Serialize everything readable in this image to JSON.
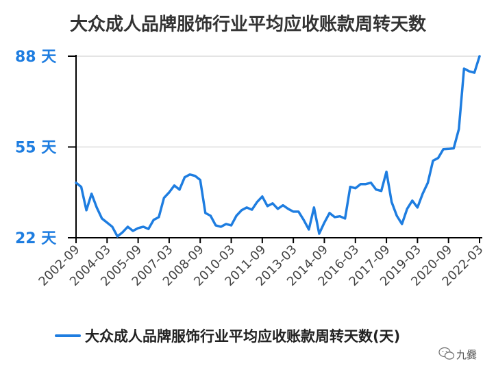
{
  "chart_data": {
    "type": "line",
    "title": "大众成人品牌服饰行业平均应收账款周转天数",
    "ylim": [
      22,
      88
    ],
    "yticks": [
      {
        "value": 22,
        "label": "22 天"
      },
      {
        "value": 55,
        "label": "55 天"
      },
      {
        "value": 88,
        "label": "88 天"
      }
    ],
    "xtick_labels": [
      "2002-09",
      "2004-03",
      "2005-09",
      "2007-03",
      "2008-09",
      "2010-03",
      "2011-09",
      "2013-03",
      "2014-09",
      "2016-03",
      "2017-09",
      "2019-03",
      "2020-09",
      "2022-03"
    ],
    "grid": true,
    "legend": "bottom",
    "series": [
      {
        "name": "大众成人品牌服饰行业平均应收账款周转天数(天)",
        "values": [
          42,
          40.5,
          32,
          38,
          33,
          29,
          27.5,
          26,
          22.5,
          24,
          26,
          24.5,
          25.5,
          26,
          25.2,
          28.5,
          29.5,
          36.5,
          38.5,
          41,
          39.5,
          44,
          45,
          44.5,
          43,
          31,
          30,
          26.5,
          26,
          27,
          26.5,
          30,
          32,
          33,
          32.2,
          35,
          37,
          33.5,
          34.5,
          32.5,
          33.8,
          32.5,
          31.5,
          31.5,
          28.5,
          25,
          33,
          23.5,
          27.5,
          31,
          29.5,
          29.8,
          29,
          40.5,
          40,
          41.5,
          41.5,
          42,
          39.5,
          39,
          46,
          35,
          30,
          27,
          32.5,
          35.5,
          33,
          38,
          42,
          50,
          51,
          54.2,
          54.3,
          54.5,
          61.5,
          83.5,
          82.5,
          82,
          88
        ]
      }
    ],
    "colors": {
      "line": "#1e7de0",
      "ytick": "#1e7de0",
      "grid": "#dcdcdc",
      "axis": "#000000"
    }
  },
  "watermark": {
    "text": "九爨",
    "icon": "wechat-icon"
  }
}
